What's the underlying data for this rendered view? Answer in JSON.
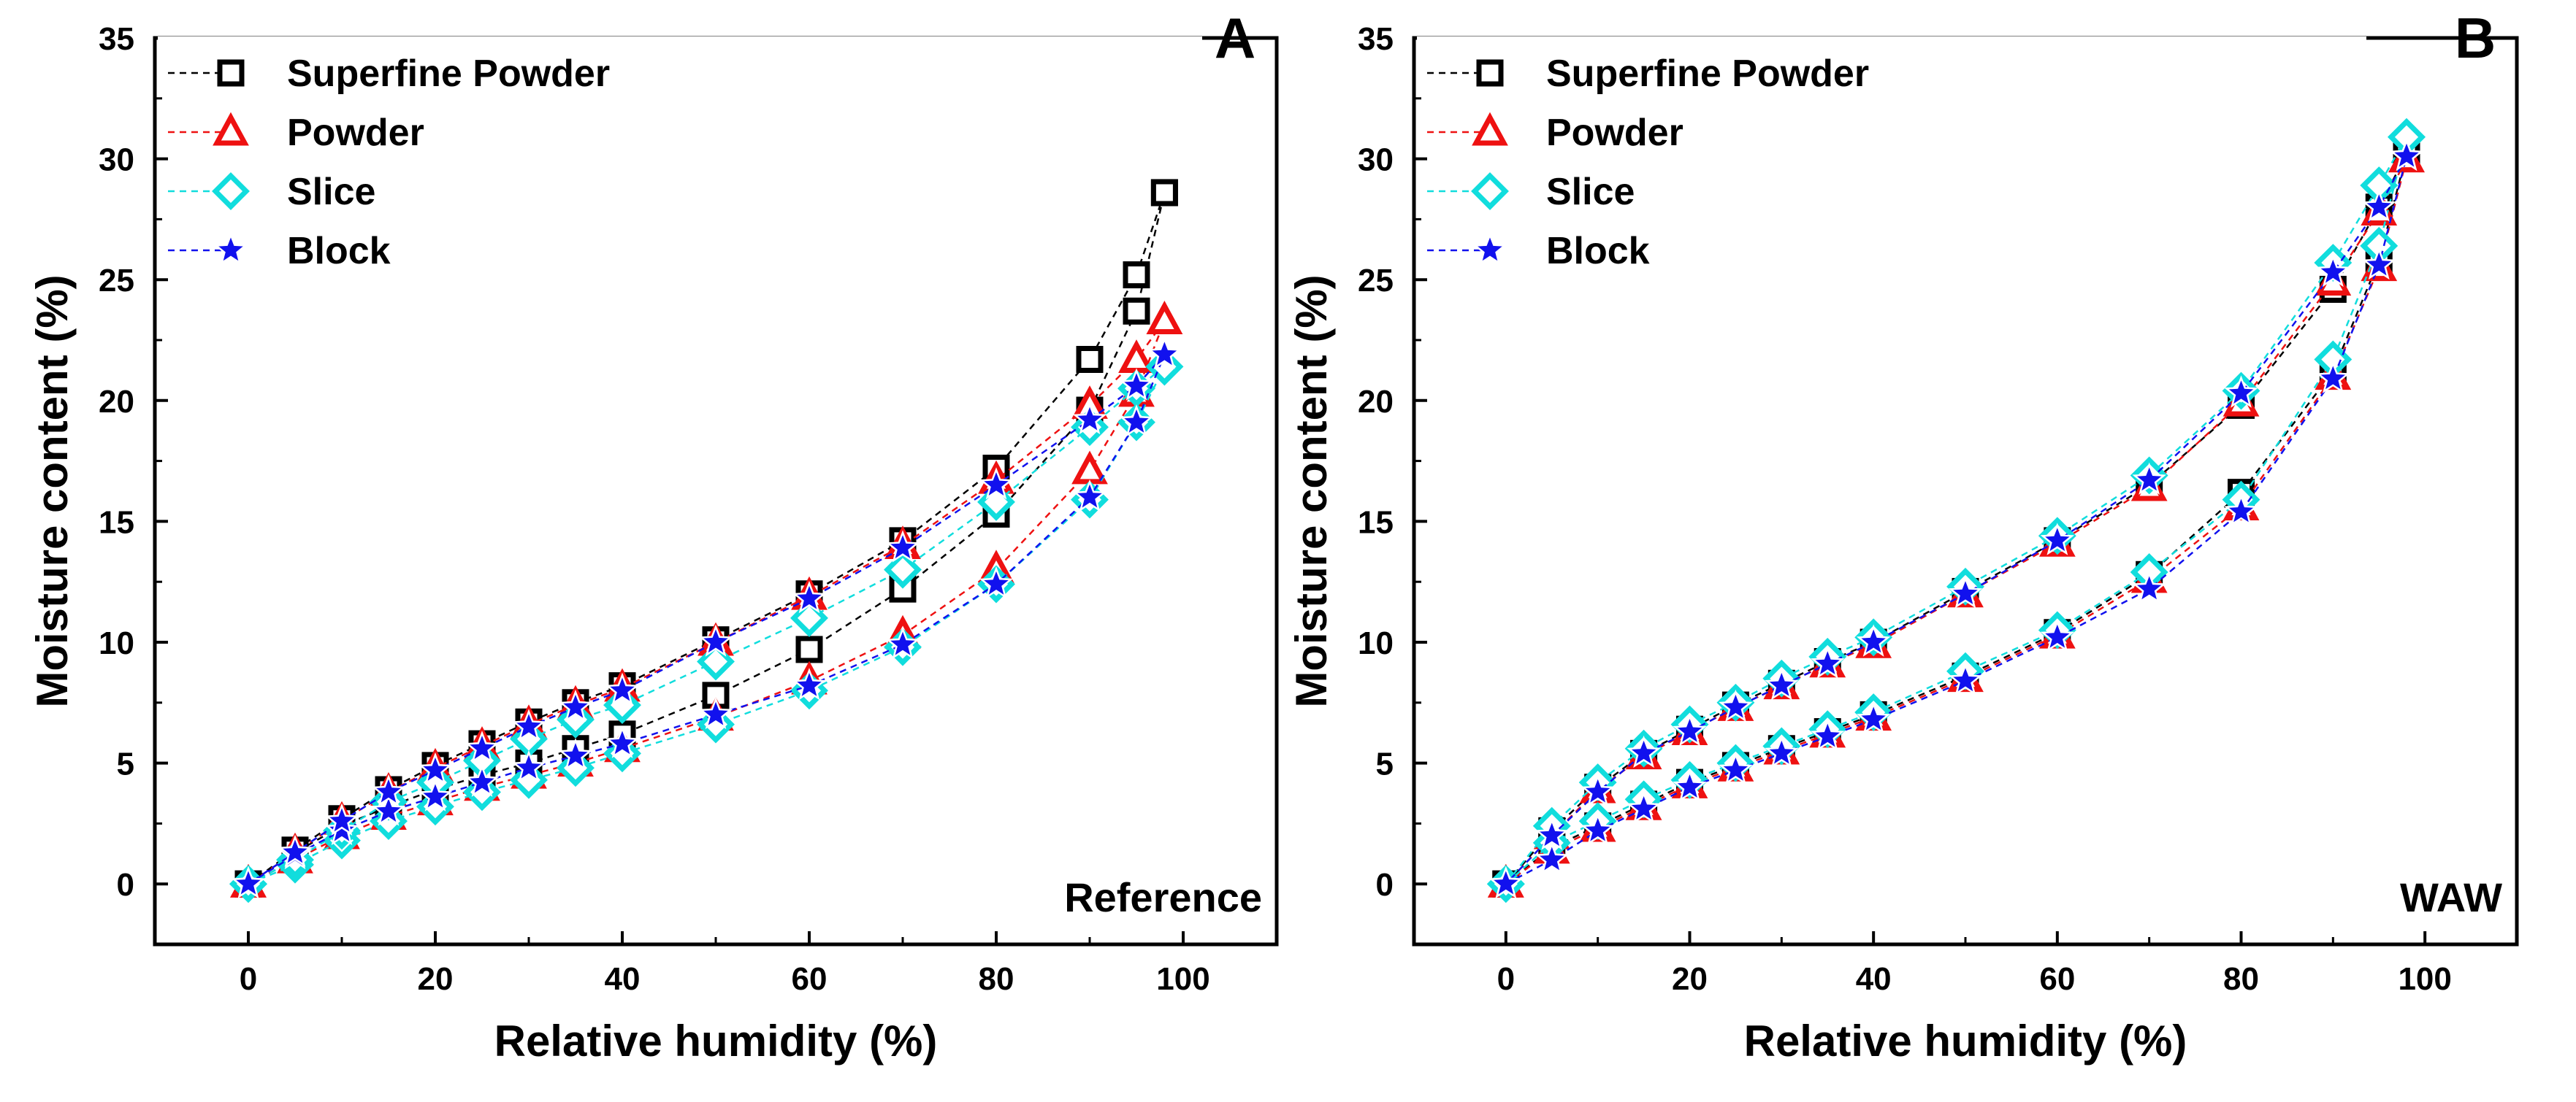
{
  "chart_data": [
    {
      "type": "scatter",
      "panel_label": "A",
      "annotation": "Reference",
      "xlabel": "Relative humidity (%)",
      "ylabel": "Moisture content (%)",
      "xlim": [
        -10,
        110
      ],
      "ylim": [
        -2.5,
        35
      ],
      "xticks": [
        0,
        20,
        40,
        60,
        80,
        100
      ],
      "yticks": [
        0,
        5,
        10,
        15,
        20,
        25,
        30,
        35
      ],
      "legend_position": "top-left",
      "series": [
        {
          "name": "Superfine Powder",
          "color": "#000000",
          "marker": "square",
          "adsorption": {
            "x": [
              0,
              5,
              10,
              15,
              20,
              25,
              30,
              35,
              40,
              50,
              60,
              70,
              80,
              90,
              95,
              98
            ],
            "y": [
              0,
              1.3,
              2.4,
              3.2,
              3.9,
              4.5,
              5.0,
              5.6,
              6.2,
              7.8,
              9.7,
              12.2,
              15.3,
              19.6,
              23.7,
              28.6
            ]
          },
          "desorption": {
            "x": [
              98,
              95,
              90,
              80,
              70,
              60,
              50,
              40,
              35,
              30,
              25,
              20,
              15,
              10,
              5,
              0
            ],
            "y": [
              28.6,
              25.2,
              21.7,
              17.2,
              14.2,
              12.0,
              10.1,
              8.2,
              7.5,
              6.7,
              5.8,
              4.9,
              3.9,
              2.7,
              1.4,
              0
            ]
          }
        },
        {
          "name": "Powder",
          "color": "#ee1111",
          "marker": "triangle",
          "adsorption": {
            "x": [
              0,
              5,
              10,
              15,
              20,
              25,
              30,
              35,
              40,
              50,
              60,
              70,
              80,
              90,
              95,
              98
            ],
            "y": [
              0,
              1.0,
              2.0,
              2.8,
              3.4,
              4.0,
              4.5,
              5.0,
              5.6,
              6.9,
              8.4,
              10.3,
              13.0,
              17.1,
              20.3,
              23.3
            ]
          },
          "desorption": {
            "x": [
              98,
              95,
              90,
              80,
              70,
              60,
              50,
              40,
              35,
              30,
              25,
              20,
              15,
              10,
              5,
              0
            ],
            "y": [
              23.3,
              21.7,
              19.8,
              16.7,
              14.0,
              11.9,
              10.0,
              8.1,
              7.4,
              6.6,
              5.7,
              4.8,
              3.8,
              2.6,
              1.3,
              0
            ]
          }
        },
        {
          "name": "Slice",
          "color": "#11dddd",
          "marker": "diamond",
          "adsorption": {
            "x": [
              0,
              5,
              10,
              15,
              20,
              25,
              30,
              35,
              40,
              50,
              60,
              70,
              80,
              90,
              95,
              98
            ],
            "y": [
              0,
              0.8,
              1.8,
              2.6,
              3.2,
              3.8,
              4.3,
              4.8,
              5.4,
              6.6,
              8.0,
              9.8,
              12.4,
              15.9,
              19.1,
              21.4
            ]
          },
          "desorption": {
            "x": [
              98,
              95,
              90,
              80,
              70,
              60,
              50,
              40,
              35,
              30,
              25,
              20,
              15,
              10,
              5,
              0
            ],
            "y": [
              21.4,
              20.5,
              18.9,
              15.8,
              13.0,
              11.0,
              9.2,
              7.4,
              6.8,
              6.0,
              5.1,
              4.2,
              3.4,
              2.2,
              1.0,
              0
            ]
          }
        },
        {
          "name": "Block",
          "color": "#1111ee",
          "marker": "star",
          "adsorption": {
            "x": [
              0,
              5,
              10,
              15,
              20,
              25,
              30,
              35,
              40,
              50,
              60,
              70,
              80,
              90,
              95,
              98
            ],
            "y": [
              0,
              1.2,
              2.2,
              3.0,
              3.6,
              4.2,
              4.8,
              5.3,
              5.8,
              7.0,
              8.2,
              9.9,
              12.4,
              16.0,
              19.1,
              21.9
            ]
          },
          "desorption": {
            "x": [
              98,
              95,
              90,
              80,
              70,
              60,
              50,
              40,
              35,
              30,
              25,
              20,
              15,
              10,
              5,
              0
            ],
            "y": [
              21.9,
              20.6,
              19.2,
              16.5,
              13.9,
              11.8,
              10.0,
              8.0,
              7.3,
              6.5,
              5.6,
              4.7,
              3.8,
              2.6,
              1.3,
              0
            ]
          }
        }
      ]
    },
    {
      "type": "scatter",
      "panel_label": "B",
      "annotation": "WAW",
      "xlabel": "Relative humidity (%)",
      "ylabel": "Moisture content (%)",
      "xlim": [
        -10,
        110
      ],
      "ylim": [
        -2.5,
        35
      ],
      "xticks": [
        0,
        20,
        40,
        60,
        80,
        100
      ],
      "yticks": [
        0,
        5,
        10,
        15,
        20,
        25,
        30,
        35
      ],
      "legend_position": "top-left",
      "series": [
        {
          "name": "Superfine Powder",
          "color": "#000000",
          "marker": "square",
          "adsorption": {
            "x": [
              0,
              5,
              10,
              15,
              20,
              25,
              30,
              35,
              40,
              50,
              60,
              70,
              80,
              90,
              95,
              98
            ],
            "y": [
              0,
              1.5,
              2.4,
              3.3,
              4.2,
              4.9,
              5.6,
              6.3,
              7.0,
              8.6,
              10.4,
              12.8,
              16.2,
              21.2,
              25.8,
              30.2
            ]
          },
          "desorption": {
            "x": [
              98,
              95,
              90,
              80,
              70,
              60,
              50,
              40,
              35,
              30,
              25,
              20,
              15,
              10,
              5,
              0
            ],
            "y": [
              30.2,
              28.0,
              24.6,
              19.8,
              16.5,
              14.2,
              12.1,
              10.0,
              9.2,
              8.3,
              7.4,
              6.4,
              5.4,
              4.0,
              2.2,
              0
            ]
          }
        },
        {
          "name": "Powder",
          "color": "#ee1111",
          "marker": "triangle",
          "adsorption": {
            "x": [
              0,
              5,
              10,
              15,
              20,
              25,
              30,
              35,
              40,
              50,
              60,
              70,
              80,
              90,
              95,
              98
            ],
            "y": [
              0,
              1.4,
              2.3,
              3.2,
              4.1,
              4.8,
              5.5,
              6.2,
              6.9,
              8.5,
              10.3,
              12.6,
              15.6,
              21.0,
              25.5,
              30.0
            ]
          },
          "desorption": {
            "x": [
              98,
              95,
              90,
              80,
              70,
              60,
              50,
              40,
              35,
              30,
              25,
              20,
              15,
              10,
              5,
              0
            ],
            "y": [
              30.0,
              27.8,
              24.9,
              19.9,
              16.4,
              14.1,
              12.0,
              9.9,
              9.1,
              8.2,
              7.3,
              6.3,
              5.3,
              3.9,
              2.0,
              0
            ]
          }
        },
        {
          "name": "Slice",
          "color": "#11dddd",
          "marker": "diamond",
          "adsorption": {
            "x": [
              0,
              5,
              10,
              15,
              20,
              25,
              30,
              35,
              40,
              50,
              60,
              70,
              80,
              90,
              95,
              98
            ],
            "y": [
              0,
              1.7,
              2.6,
              3.5,
              4.3,
              5.0,
              5.7,
              6.4,
              7.1,
              8.8,
              10.5,
              12.9,
              15.9,
              21.7,
              26.4,
              30.9
            ]
          },
          "desorption": {
            "x": [
              98,
              95,
              90,
              80,
              70,
              60,
              50,
              40,
              35,
              30,
              25,
              20,
              15,
              10,
              5,
              0
            ],
            "y": [
              30.9,
              28.9,
              25.7,
              20.4,
              16.9,
              14.4,
              12.3,
              10.2,
              9.4,
              8.5,
              7.5,
              6.6,
              5.6,
              4.2,
              2.4,
              0
            ]
          }
        },
        {
          "name": "Block",
          "color": "#1111ee",
          "marker": "star",
          "adsorption": {
            "x": [
              0,
              5,
              10,
              15,
              20,
              25,
              30,
              35,
              40,
              50,
              60,
              70,
              80,
              90,
              95,
              98
            ],
            "y": [
              0,
              1.0,
              2.2,
              3.1,
              4.0,
              4.7,
              5.4,
              6.1,
              6.8,
              8.4,
              10.2,
              12.2,
              15.4,
              20.9,
              25.6,
              30.1
            ]
          },
          "desorption": {
            "x": [
              98,
              95,
              90,
              80,
              70,
              60,
              50,
              40,
              35,
              30,
              25,
              20,
              15,
              10,
              5,
              0
            ],
            "y": [
              30.1,
              28.0,
              25.3,
              20.3,
              16.7,
              14.2,
              12.0,
              10.0,
              9.1,
              8.2,
              7.3,
              6.3,
              5.4,
              3.8,
              2.0,
              0
            ]
          }
        }
      ]
    }
  ]
}
